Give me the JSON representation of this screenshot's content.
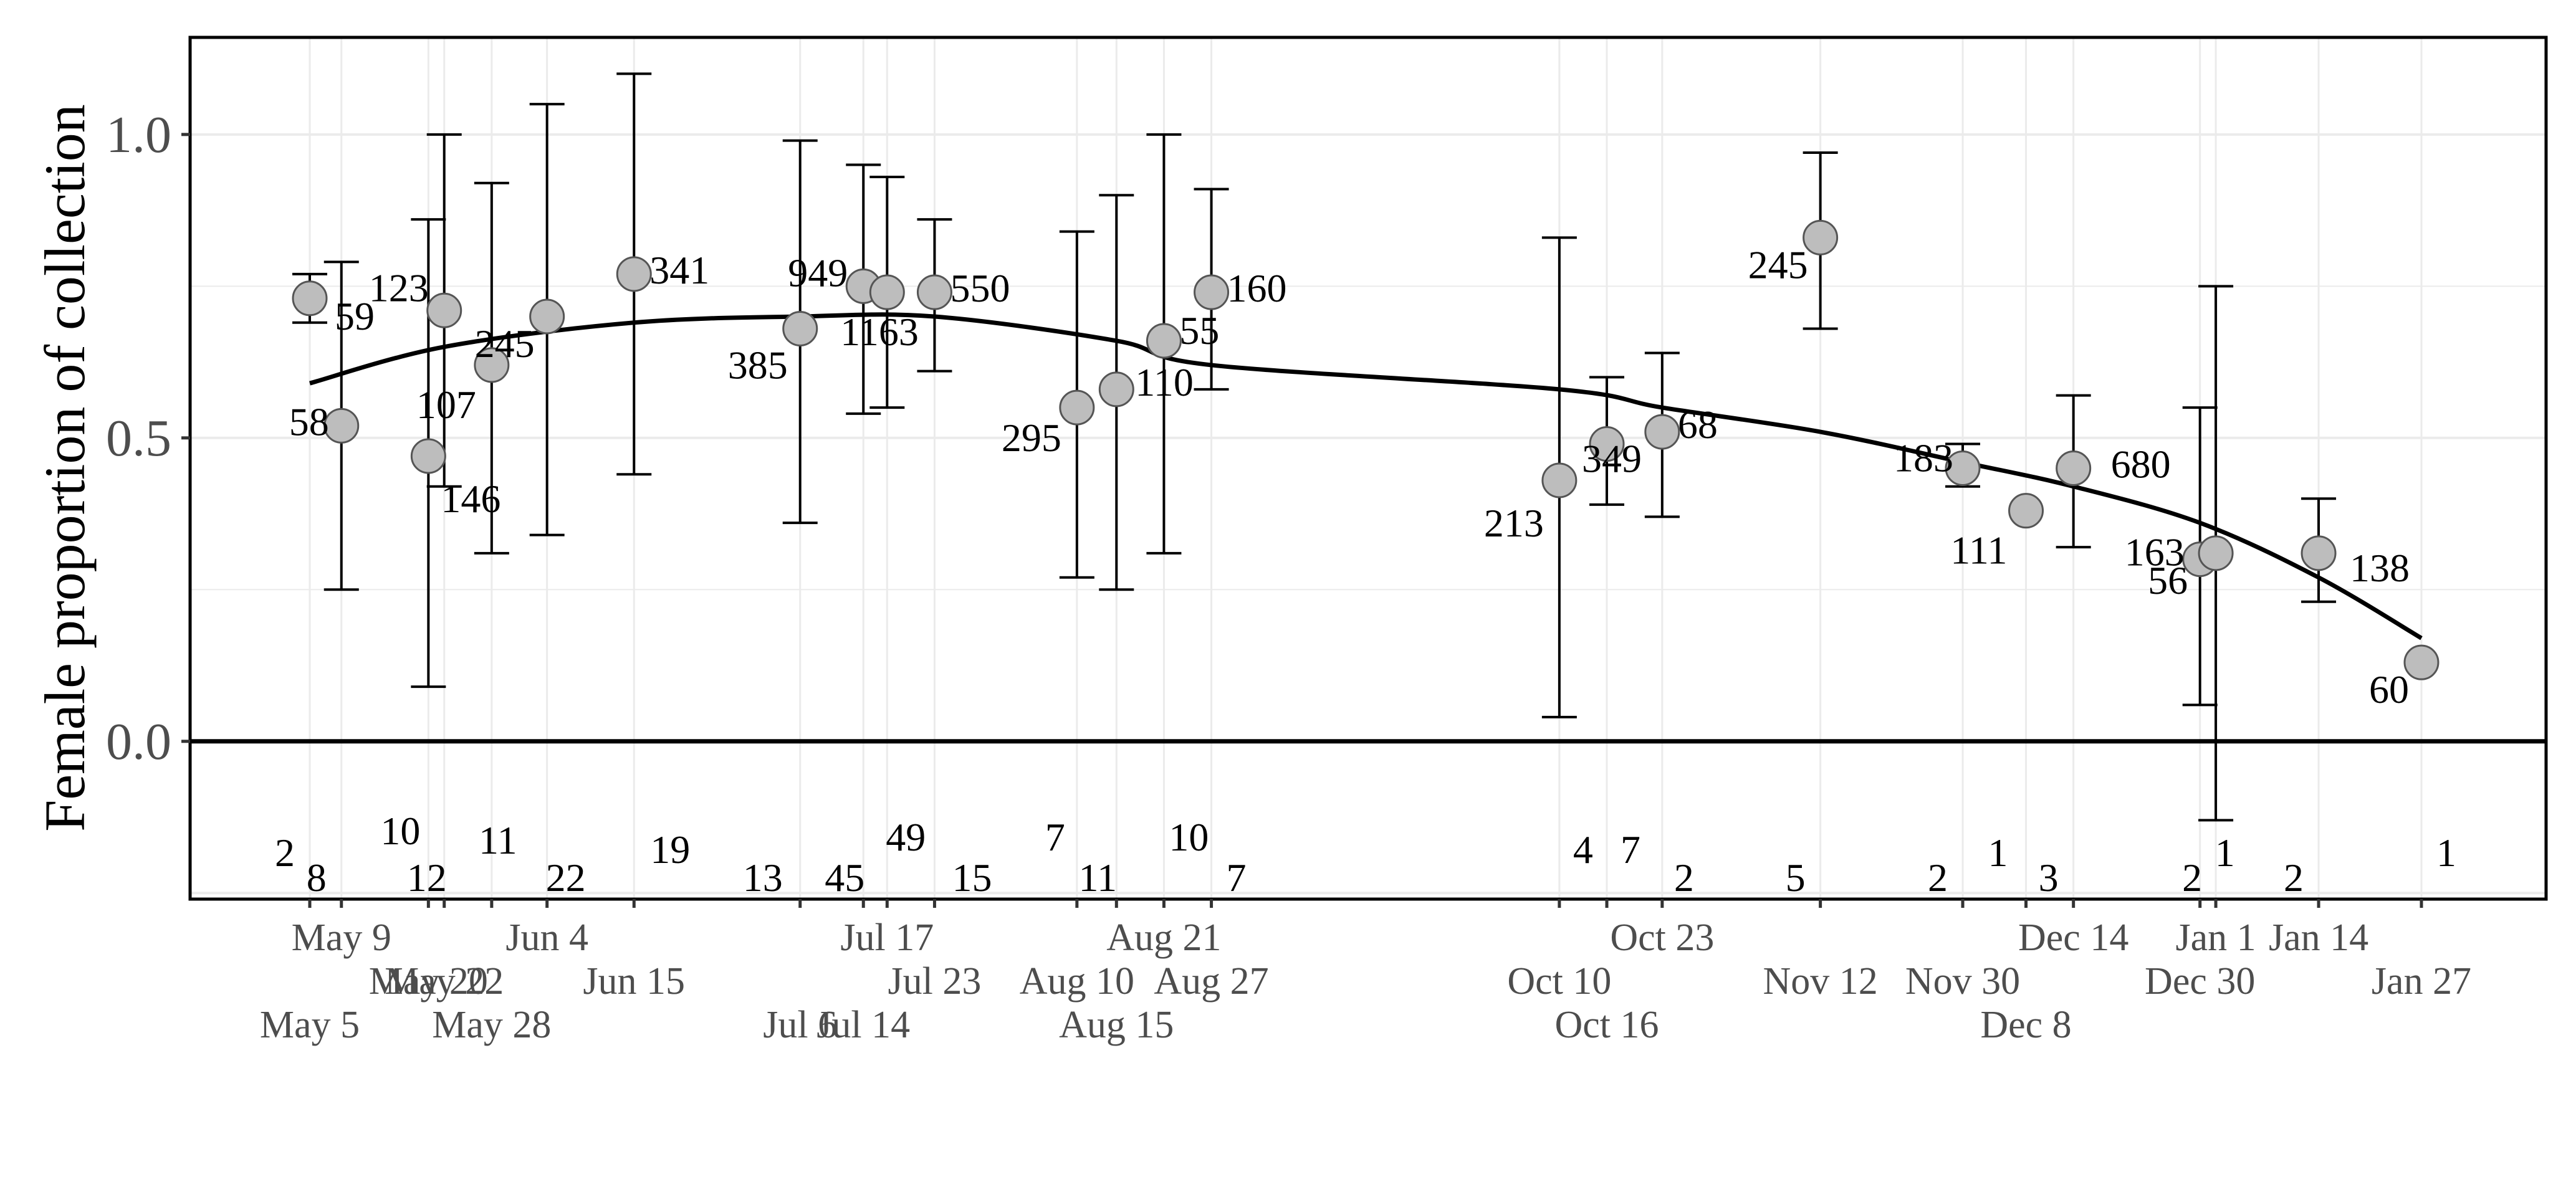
{
  "chart_data": {
    "type": "scatter",
    "title": "",
    "ylabel": "Female proportion of collection",
    "xlabel": "",
    "ylim": [
      -0.26,
      1.16
    ],
    "y_ticks": [
      "0.0",
      "0.5",
      "1.0"
    ],
    "y_tick_values": [
      0.0,
      0.5,
      1.0
    ],
    "x_tick_labels": [
      "May 5",
      "May 9",
      "May 20",
      "May 22",
      "May 28",
      "Jun 4",
      "Jun 15",
      "Jul 6",
      "Jul 14",
      "Jul 17",
      "Jul 23",
      "Aug 10",
      "Aug 15",
      "Aug 21",
      "Aug 27",
      "Oct 10",
      "Oct 16",
      "Oct 23",
      "Nov 12",
      "Nov 30",
      "Dec 8",
      "Dec 14",
      "Dec 30",
      "Jan 1",
      "Jan 14",
      "Jan 27"
    ],
    "reference_line_y": 0.0,
    "grid": true,
    "points": [
      {
        "date": "May 5",
        "y": 0.73,
        "lo": 0.69,
        "hi": 0.77,
        "n_label": "59",
        "count": "2"
      },
      {
        "date": "May 9",
        "y": 0.52,
        "lo": 0.25,
        "hi": 0.79,
        "n_label": "58",
        "count": "8"
      },
      {
        "date": "May 20",
        "y": 0.47,
        "lo": 0.09,
        "hi": 0.86,
        "n_label": "146",
        "count": "10"
      },
      {
        "date": "May 22",
        "y": 0.71,
        "lo": 0.42,
        "hi": 1.0,
        "n_label": "123",
        "count": "12"
      },
      {
        "date": "May 28",
        "y": 0.62,
        "lo": 0.31,
        "hi": 0.92,
        "n_label": "107",
        "count": "11"
      },
      {
        "date": "Jun 4",
        "y": 0.7,
        "lo": 0.34,
        "hi": 1.05,
        "n_label": "245",
        "count": "22"
      },
      {
        "date": "Jun 15",
        "y": 0.77,
        "lo": 0.44,
        "hi": 1.1,
        "n_label": "341",
        "count": "19"
      },
      {
        "date": "Jul 6",
        "y": 0.68,
        "lo": 0.36,
        "hi": 0.99,
        "n_label": "385",
        "count": "13"
      },
      {
        "date": "Jul 14",
        "y": 0.75,
        "lo": 0.54,
        "hi": 0.95,
        "n_label": "949",
        "count": "45"
      },
      {
        "date": "Jul 17",
        "y": 0.74,
        "lo": 0.55,
        "hi": 0.93,
        "n_label": "1163",
        "count": "49"
      },
      {
        "date": "Jul 23",
        "y": 0.74,
        "lo": 0.61,
        "hi": 0.86,
        "n_label": "550",
        "count": "15"
      },
      {
        "date": "Aug 10",
        "y": 0.55,
        "lo": 0.27,
        "hi": 0.84,
        "n_label": "295",
        "count": "7"
      },
      {
        "date": "Aug 15",
        "y": 0.58,
        "lo": 0.25,
        "hi": 0.9,
        "n_label": "110",
        "count": "11"
      },
      {
        "date": "Aug 21",
        "y": 0.66,
        "lo": 0.31,
        "hi": 1.0,
        "n_label": "55",
        "count": "10"
      },
      {
        "date": "Aug 27",
        "y": 0.74,
        "lo": 0.58,
        "hi": 0.91,
        "n_label": "160",
        "count": "7"
      },
      {
        "date": "Oct 10",
        "y": 0.43,
        "lo": 0.04,
        "hi": 0.83,
        "n_label": "213",
        "count": "4"
      },
      {
        "date": "Oct 16",
        "y": 0.49,
        "lo": 0.39,
        "hi": 0.6,
        "n_label": "349",
        "count": "7"
      },
      {
        "date": "Oct 23",
        "y": 0.51,
        "lo": 0.37,
        "hi": 0.64,
        "n_label": "68",
        "count": "2"
      },
      {
        "date": "Nov 12",
        "y": 0.83,
        "lo": 0.68,
        "hi": 0.97,
        "n_label": "245",
        "count": "5"
      },
      {
        "date": "Nov 30",
        "y": 0.45,
        "lo": 0.42,
        "hi": 0.49,
        "n_label": "183",
        "count": "2"
      },
      {
        "date": "Dec 8",
        "y": 0.38,
        "lo": null,
        "hi": null,
        "n_label": "111",
        "count": "1"
      },
      {
        "date": "Dec 14",
        "y": 0.45,
        "lo": 0.32,
        "hi": 0.57,
        "n_label": "680",
        "count": "3"
      },
      {
        "date": "Dec 30",
        "y": 0.3,
        "lo": 0.06,
        "hi": 0.55,
        "n_label": "163",
        "count": "1"
      },
      {
        "date": "Jan 1",
        "y": 0.31,
        "lo": -0.13,
        "hi": 0.75,
        "n_label": "56",
        "count": "2"
      },
      {
        "date": "Jan 14",
        "y": 0.31,
        "lo": 0.23,
        "hi": 0.4,
        "n_label": "138",
        "count": "2"
      },
      {
        "date": "Jan 27",
        "y": 0.13,
        "lo": null,
        "hi": null,
        "n_label": "60",
        "count": "1"
      }
    ],
    "trend": [
      {
        "date": "May 5",
        "y": 0.59
      },
      {
        "date": "May 22",
        "y": 0.65
      },
      {
        "date": "Jun 15",
        "y": 0.69
      },
      {
        "date": "Jul 6",
        "y": 0.7
      },
      {
        "date": "Jul 23",
        "y": 0.7
      },
      {
        "date": "Aug 15",
        "y": 0.66
      },
      {
        "date": "Aug 27",
        "y": 0.62
      },
      {
        "date": "Oct 10",
        "y": 0.58
      },
      {
        "date": "Oct 23",
        "y": 0.55
      },
      {
        "date": "Nov 12",
        "y": 0.51
      },
      {
        "date": "Nov 30",
        "y": 0.46
      },
      {
        "date": "Dec 14",
        "y": 0.42
      },
      {
        "date": "Dec 30",
        "y": 0.36
      },
      {
        "date": "Jan 14",
        "y": 0.27
      },
      {
        "date": "Jan 27",
        "y": 0.17
      }
    ]
  },
  "style": {
    "point_fill": "#bdbdbd",
    "point_stroke": "#555555",
    "grid_color": "#ebebeb",
    "line_color": "#000000"
  }
}
